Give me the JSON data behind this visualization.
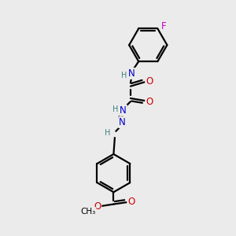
{
  "background_color": "#ebebeb",
  "bond_color": "#000000",
  "N_color": "#0000cc",
  "O_color": "#cc0000",
  "F_color": "#cc00cc",
  "H_color": "#408080",
  "line_width": 1.6,
  "dbo": 0.055,
  "fs": 8.5,
  "fig_size": [
    3.0,
    3.0
  ],
  "dpi": 100,
  "xlim": [
    0,
    10
  ],
  "ylim": [
    0,
    10
  ]
}
